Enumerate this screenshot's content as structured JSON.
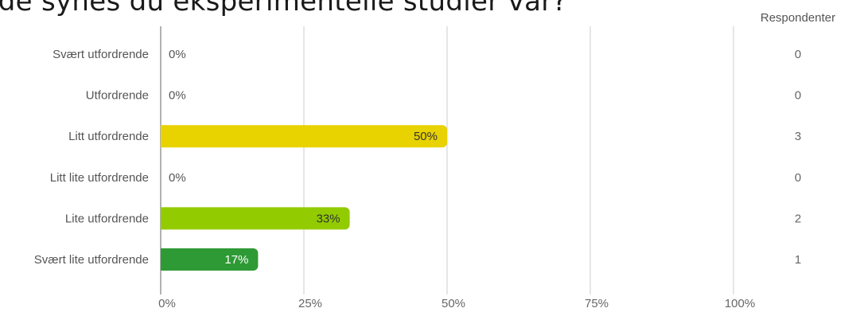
{
  "title_fragment": "ide synes du eksperimentelle studier var?",
  "colors": {
    "grid": "#cccccc",
    "axis": "#999999"
  },
  "chart_data": {
    "type": "bar",
    "orientation": "horizontal",
    "categories": [
      "Svært utfordrende",
      "Utfordrende",
      "Litt utfordrende",
      "Litt lite utfordrende",
      "Lite utfordrende",
      "Svært lite utfordrende"
    ],
    "values": [
      0,
      0,
      50,
      0,
      33,
      17
    ],
    "value_labels": [
      "0%",
      "0%",
      "50%",
      "0%",
      "33%",
      "17%"
    ],
    "bar_colors": [
      "#d9d9d9",
      "#d9d9d9",
      "#e8d200",
      "#d9d9d9",
      "#92cc00",
      "#2e9a35"
    ],
    "label_colors": [
      "#555555",
      "#555555",
      "#333333",
      "#555555",
      "#333333",
      "#ffffff"
    ],
    "respondents_header": "Respondenter",
    "respondents": [
      "0",
      "0",
      "3",
      "0",
      "2",
      "1"
    ],
    "x_ticks": [
      "0%",
      "25%",
      "50%",
      "75%",
      "100%"
    ],
    "xlim": [
      0,
      100
    ],
    "grid": true
  }
}
